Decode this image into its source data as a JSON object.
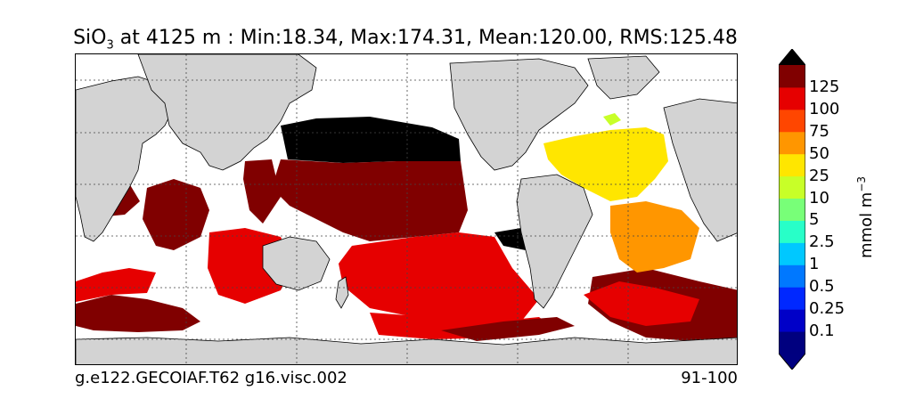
{
  "title": {
    "species_base": "SiO",
    "species_sub": "3",
    "rest": " at 4125 m : Min:18.34, Max:174.31, Mean:120.00, RMS:125.48"
  },
  "footer": {
    "case_name": "g.e122.GECOIAF.T62 g16.visc.002",
    "years": "91-100"
  },
  "colorbar": {
    "unit_base": "mmol m",
    "unit_exp": "−3",
    "labels": [
      "0.1",
      "0.25",
      "0.5",
      "1",
      "2.5",
      "5",
      "10",
      "25",
      "50",
      "75",
      "100",
      "125"
    ],
    "colors": [
      "#00007f",
      "#0000c8",
      "#0028ff",
      "#0078ff",
      "#00c8ff",
      "#28ffc8",
      "#78ff78",
      "#c8ff28",
      "#ffe600",
      "#ff9600",
      "#ff4600",
      "#e60000",
      "#800000"
    ],
    "under_color": "#000080",
    "over_color": "#000000"
  },
  "map": {
    "land_color": "#d3d3d3",
    "ocean_nodata_color": "#ffffff",
    "gridline_style": "dotted"
  }
}
